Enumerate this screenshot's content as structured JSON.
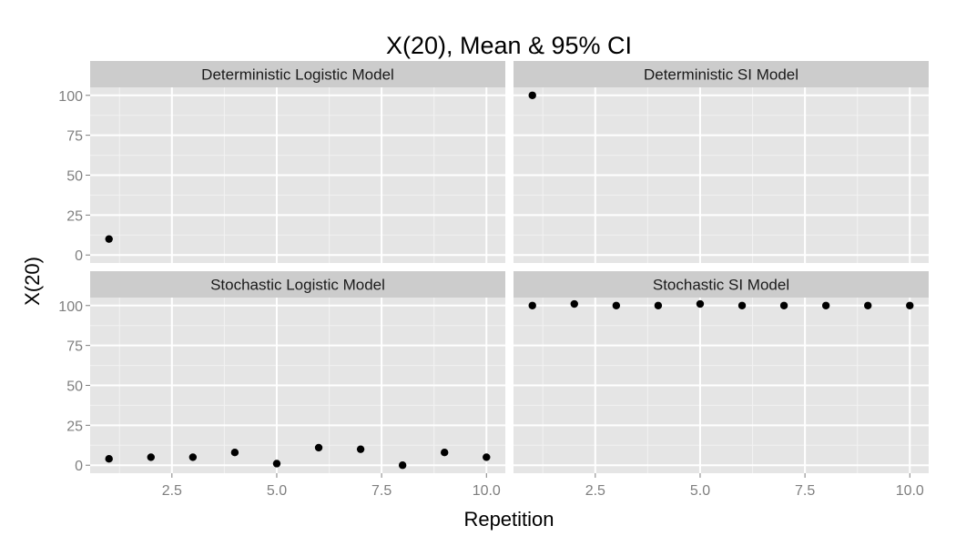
{
  "chart_data": {
    "type": "scatter",
    "title": "X(20), Mean & 95% CI",
    "xlabel": "Repetition",
    "ylabel": "X(20)",
    "xlim": [
      0.55,
      10.45
    ],
    "ylim": [
      -5,
      105
    ],
    "x_ticks": [
      2.5,
      5.0,
      7.5,
      10.0
    ],
    "x_tick_labels": [
      "2.5",
      "5.0",
      "7.5",
      "10.0"
    ],
    "y_ticks": [
      0,
      25,
      50,
      75,
      100
    ],
    "y_tick_labels": [
      "0",
      "25",
      "50",
      "75",
      "100"
    ],
    "grid": true,
    "legend": "none",
    "colors": {
      "panel_bg": "#e5e5e5",
      "strip_bg": "#cccccc",
      "grid_major": "#ffffff",
      "grid_minor": "#f2f2f2",
      "point": "#000000",
      "tick": "#7f7f7f"
    },
    "panels": [
      {
        "name": "Deterministic Logistic Model",
        "row": 0,
        "col": 0,
        "points": [
          {
            "x": 1,
            "y": 10
          }
        ]
      },
      {
        "name": "Deterministic SI Model",
        "row": 0,
        "col": 1,
        "points": [
          {
            "x": 1,
            "y": 100
          }
        ]
      },
      {
        "name": "Stochastic Logistic Model",
        "row": 1,
        "col": 0,
        "points": [
          {
            "x": 1,
            "y": 4
          },
          {
            "x": 2,
            "y": 5
          },
          {
            "x": 3,
            "y": 5
          },
          {
            "x": 4,
            "y": 8
          },
          {
            "x": 5,
            "y": 1
          },
          {
            "x": 6,
            "y": 11
          },
          {
            "x": 7,
            "y": 10
          },
          {
            "x": 8,
            "y": 0
          },
          {
            "x": 9,
            "y": 8
          },
          {
            "x": 10,
            "y": 5
          }
        ]
      },
      {
        "name": "Stochastic SI Model",
        "row": 1,
        "col": 1,
        "points": [
          {
            "x": 1,
            "y": 100
          },
          {
            "x": 2,
            "y": 101
          },
          {
            "x": 3,
            "y": 100
          },
          {
            "x": 4,
            "y": 100
          },
          {
            "x": 5,
            "y": 101
          },
          {
            "x": 6,
            "y": 100
          },
          {
            "x": 7,
            "y": 100
          },
          {
            "x": 8,
            "y": 100
          },
          {
            "x": 9,
            "y": 100
          },
          {
            "x": 10,
            "y": 100
          }
        ]
      }
    ]
  }
}
